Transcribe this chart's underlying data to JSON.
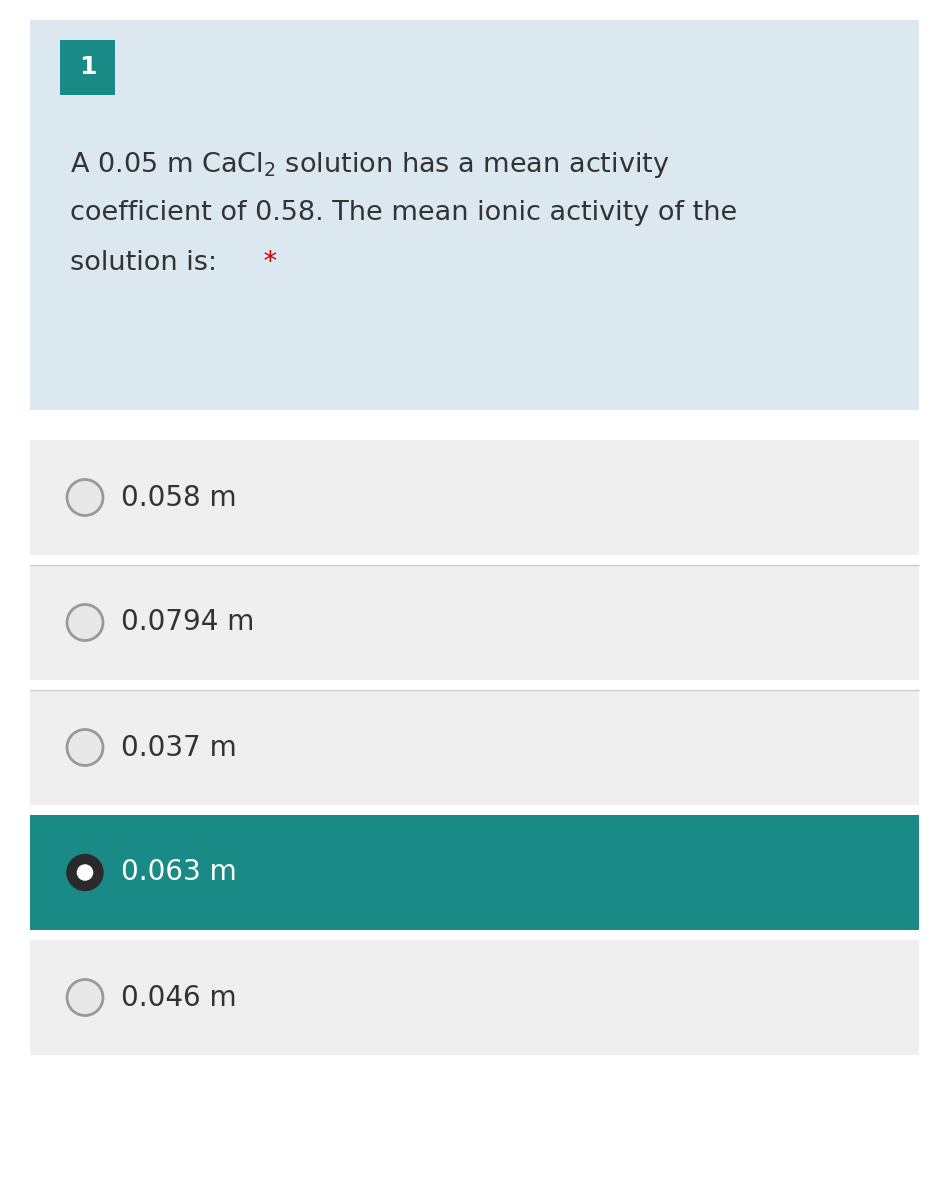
{
  "question_number": "1",
  "question_number_bg": "#1a8a87",
  "question_bg": "#dce8f0",
  "star_color": "#cc0000",
  "text_color": "#333333",
  "options": [
    "0.058 m",
    "0.0794 m",
    "0.037 m",
    "0.063 m",
    "0.046 m"
  ],
  "selected_index": 3,
  "option_bg_normal": "#efefef",
  "option_bg_selected": "#1a8a87",
  "option_text_normal": "#333333",
  "option_text_selected": "#ffffff",
  "radio_border_normal": "#999999",
  "radio_fill_normal": "#e8e8e8",
  "radio_fill_selected_outer": "#2a2a2a",
  "radio_fill_selected_inner": "#ffffff",
  "background_color": "#ffffff",
  "option_border_color": "#d0d0d0",
  "fig_width": 9.49,
  "fig_height": 12.0,
  "dpi": 100
}
